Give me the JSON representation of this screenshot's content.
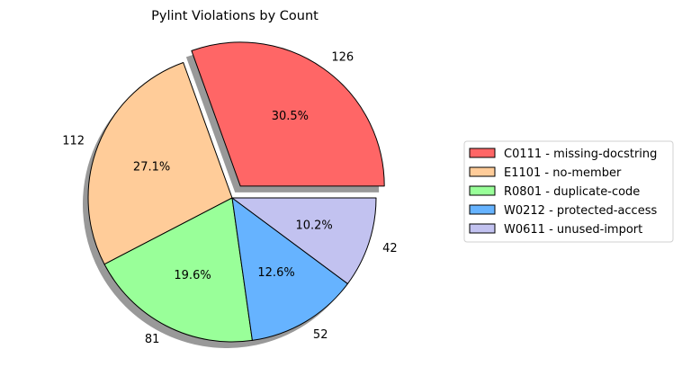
{
  "chart_data": {
    "type": "pie",
    "title": "Pylint Violations by Count",
    "slices": [
      {
        "label": "C0111 - missing-docstring",
        "value": 126,
        "percent_label": "30.5%",
        "color": "#ff6666",
        "exploded": true
      },
      {
        "label": "E1101 - no-member",
        "value": 112,
        "percent_label": "27.1%",
        "color": "#ffcc99",
        "exploded": false
      },
      {
        "label": "R0801 - duplicate-code",
        "value": 81,
        "percent_label": "19.6%",
        "color": "#99ff99",
        "exploded": false
      },
      {
        "label": "W0212 - protected-access",
        "value": 52,
        "percent_label": "12.6%",
        "color": "#66b3ff",
        "exploded": false
      },
      {
        "label": "W0611 - unused-import",
        "value": 42,
        "percent_label": "10.2%",
        "color": "#c2c2f0",
        "exploded": false
      }
    ],
    "start_angle_deg": 0,
    "direction": "counterclockwise",
    "shadow": true,
    "legend": {
      "position": "right"
    }
  }
}
